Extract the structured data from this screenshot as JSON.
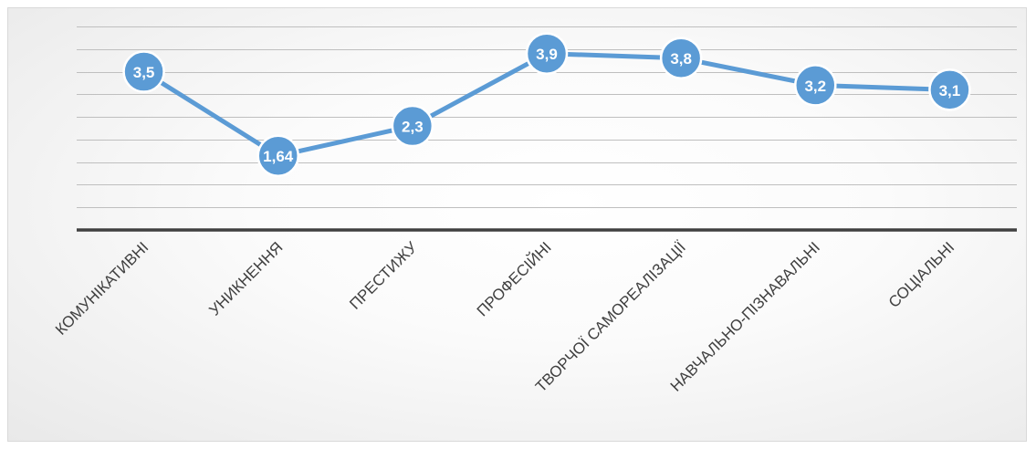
{
  "chart_data": {
    "type": "line",
    "categories": [
      "КОМУНІКАТИВНІ",
      "УНИКНЕННЯ",
      "ПРЕСТИЖУ",
      "ПРОФЕСІЙНІ",
      "ТВОРЧОЇ САМОРЕАЛІЗАЦІЇ",
      "НАВЧАЛЬНО-ПІЗНАВАЛЬНІ",
      "СОЦІАЛЬНІ"
    ],
    "series": [
      {
        "values": [
          3.5,
          1.64,
          2.3,
          3.9,
          3.8,
          3.2,
          3.1
        ],
        "data_labels": [
          "3,5",
          "1,64",
          "2,3",
          "3,9",
          "3,8",
          "3,2",
          "3,1"
        ],
        "color": "#5b9bd5"
      }
    ],
    "ylim": [
      0,
      4.5
    ],
    "grid": true,
    "gridline_step": 0.5,
    "legend": "none",
    "title": "",
    "xlabel": "",
    "ylabel": ""
  }
}
